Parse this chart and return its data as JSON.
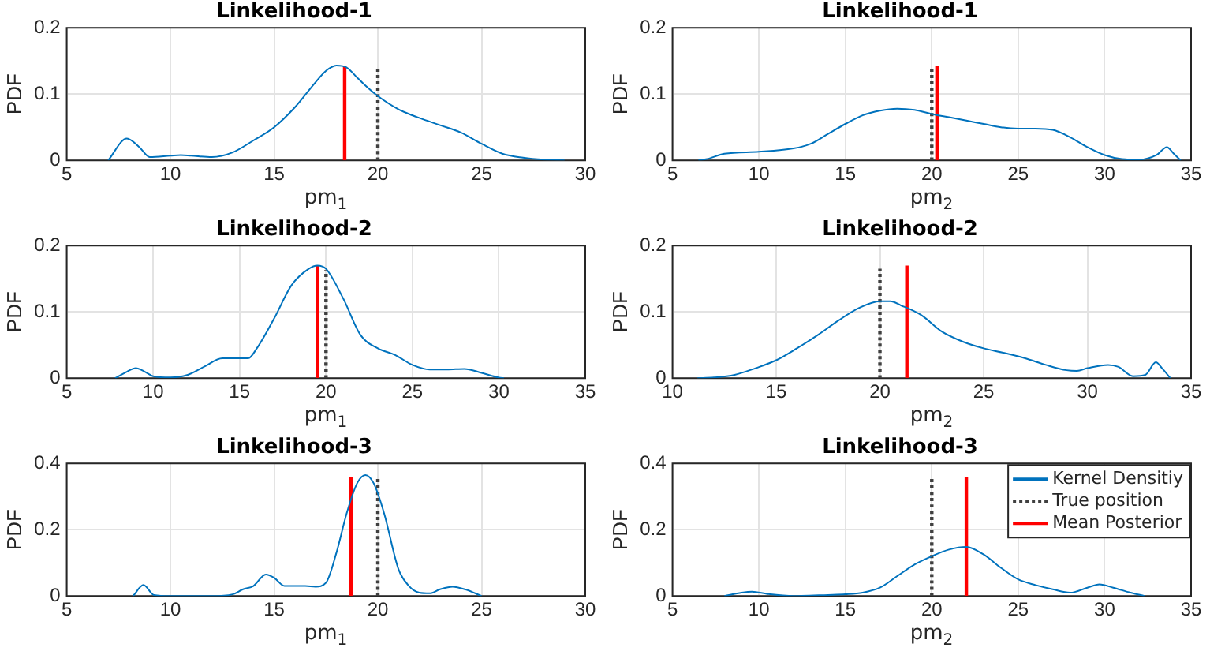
{
  "chart_data": [
    {
      "type": "line",
      "title": "Linkelihood-1",
      "xlabel": "pm$_{1}$",
      "ylabel": "PDF",
      "xlim": [
        5,
        30
      ],
      "xticks": [
        5,
        10,
        15,
        20,
        25,
        30
      ],
      "ylim": [
        0,
        0.2
      ],
      "yticks": [
        0,
        0.1,
        0.2
      ],
      "grid": true,
      "series": [
        {
          "color": "#0072bd",
          "x": [
            7,
            7.9,
            8.5,
            9,
            10,
            10.5,
            11,
            12,
            13,
            14,
            15,
            16,
            17,
            17.5,
            18,
            18.5,
            19,
            19.5,
            20,
            21,
            22,
            23,
            24,
            25,
            26,
            27,
            28,
            29
          ],
          "values": [
            0,
            0.033,
            0.02,
            0.005,
            0.007,
            0.008,
            0.007,
            0.005,
            0.012,
            0.03,
            0.05,
            0.08,
            0.118,
            0.135,
            0.143,
            0.14,
            0.125,
            0.11,
            0.097,
            0.077,
            0.064,
            0.053,
            0.042,
            0.025,
            0.01,
            0.004,
            0.001,
            0
          ]
        },
        {
          "color": "#404040",
          "line_style": "dotted",
          "x": [
            20,
            20
          ],
          "values": [
            0,
            0.143
          ]
        },
        {
          "color": "#ff0000",
          "line_style": "solid",
          "x": [
            18.4,
            18.4
          ],
          "values": [
            0,
            0.143
          ]
        }
      ]
    },
    {
      "type": "line",
      "title": "Linkelihood-1",
      "xlabel": "pm$_{2}$",
      "ylabel": "PDF",
      "xlim": [
        5,
        35
      ],
      "xticks": [
        5,
        10,
        15,
        20,
        25,
        30,
        35
      ],
      "ylim": [
        0,
        0.2
      ],
      "yticks": [
        0,
        0.1,
        0.2
      ],
      "grid": true,
      "series": [
        {
          "color": "#0072bd",
          "x": [
            6.5,
            7,
            8,
            10,
            12,
            13,
            14,
            15,
            16,
            17,
            18,
            19,
            20,
            21,
            22,
            23,
            24,
            25,
            26,
            27,
            28,
            29,
            30,
            31,
            32,
            33,
            33.6,
            34,
            34.4
          ],
          "values": [
            0,
            0.002,
            0.01,
            0.013,
            0.018,
            0.025,
            0.04,
            0.055,
            0.068,
            0.075,
            0.078,
            0.076,
            0.07,
            0.065,
            0.06,
            0.055,
            0.05,
            0.048,
            0.048,
            0.046,
            0.035,
            0.02,
            0.008,
            0.002,
            0.001,
            0.008,
            0.02,
            0.01,
            0
          ]
        },
        {
          "color": "#404040",
          "line_style": "dotted",
          "x": [
            20,
            20
          ],
          "values": [
            0,
            0.143
          ]
        },
        {
          "color": "#ff0000",
          "line_style": "solid",
          "x": [
            20.3,
            20.3
          ],
          "values": [
            0,
            0.143
          ]
        }
      ]
    },
    {
      "type": "line",
      "title": "Linkelihood-2",
      "xlabel": "pm$_{1}$",
      "ylabel": "PDF",
      "xlim": [
        5,
        35
      ],
      "xticks": [
        5,
        10,
        15,
        20,
        25,
        30,
        35
      ],
      "ylim": [
        0,
        0.2
      ],
      "yticks": [
        0,
        0.1,
        0.2
      ],
      "grid": true,
      "series": [
        {
          "color": "#0072bd",
          "x": [
            7.8,
            8.5,
            9,
            9.5,
            10,
            11,
            12,
            13,
            14,
            15,
            15.5,
            16,
            17,
            18,
            19,
            19.5,
            20,
            21,
            22,
            23,
            24,
            25,
            26,
            27,
            28,
            29,
            30,
            30.3
          ],
          "values": [
            0,
            0.01,
            0.015,
            0.01,
            0.003,
            0.001,
            0.005,
            0.018,
            0.03,
            0.03,
            0.03,
            0.045,
            0.09,
            0.14,
            0.165,
            0.17,
            0.165,
            0.12,
            0.065,
            0.045,
            0.035,
            0.02,
            0.013,
            0.013,
            0.014,
            0.008,
            0.001,
            0
          ]
        },
        {
          "color": "#404040",
          "line_style": "dotted",
          "x": [
            20,
            20
          ],
          "values": [
            0,
            0.163
          ]
        },
        {
          "color": "#ff0000",
          "line_style": "solid",
          "x": [
            19.5,
            19.5
          ],
          "values": [
            0,
            0.17
          ]
        }
      ]
    },
    {
      "type": "line",
      "title": "Linkelihood-2",
      "xlabel": "pm$_{2}$",
      "ylabel": "PDF",
      "xlim": [
        10,
        35
      ],
      "xticks": [
        10,
        15,
        20,
        25,
        30,
        35
      ],
      "ylim": [
        0,
        0.2
      ],
      "yticks": [
        0,
        0.1,
        0.2
      ],
      "grid": true,
      "series": [
        {
          "color": "#0072bd",
          "x": [
            11.2,
            12,
            13,
            14,
            15,
            16,
            17,
            18,
            19,
            20,
            20.5,
            21,
            22,
            23,
            24,
            25,
            26,
            27,
            28,
            29,
            29.5,
            30,
            31,
            31.5,
            32.2,
            32.8,
            33.3,
            33.6,
            34
          ],
          "values": [
            0,
            0.001,
            0.005,
            0.015,
            0.027,
            0.045,
            0.065,
            0.087,
            0.106,
            0.116,
            0.116,
            0.11,
            0.095,
            0.07,
            0.055,
            0.045,
            0.038,
            0.03,
            0.02,
            0.012,
            0.011,
            0.015,
            0.02,
            0.017,
            0.003,
            0.005,
            0.024,
            0.015,
            0
          ]
        },
        {
          "color": "#404040",
          "line_style": "dotted",
          "x": [
            20,
            20
          ],
          "values": [
            0,
            0.165
          ]
        },
        {
          "color": "#ff0000",
          "line_style": "solid",
          "x": [
            21.3,
            21.3
          ],
          "values": [
            0,
            0.17
          ]
        }
      ]
    },
    {
      "type": "line",
      "title": "Linkelihood-3",
      "xlabel": "pm$_{1}$",
      "ylabel": "PDF",
      "xlim": [
        5,
        30
      ],
      "xticks": [
        5,
        10,
        15,
        20,
        25,
        30
      ],
      "ylim": [
        0,
        0.4
      ],
      "yticks": [
        0,
        0.2,
        0.4
      ],
      "grid": true,
      "series": [
        {
          "color": "#0072bd",
          "x": [
            8.2,
            8.7,
            9.2,
            10,
            12,
            13,
            13.5,
            14,
            14.6,
            15,
            15.5,
            16.5,
            17,
            17.5,
            18,
            18.5,
            19,
            19.4,
            19.8,
            20.3,
            21,
            21.5,
            22,
            22.5,
            23,
            23.6,
            24.2,
            25
          ],
          "values": [
            0,
            0.033,
            0.003,
            0,
            0,
            0.005,
            0.02,
            0.03,
            0.065,
            0.055,
            0.03,
            0.03,
            0.028,
            0.04,
            0.13,
            0.25,
            0.34,
            0.365,
            0.34,
            0.25,
            0.08,
            0.03,
            0.01,
            0.008,
            0.02,
            0.028,
            0.02,
            0
          ]
        },
        {
          "color": "#404040",
          "line_style": "dotted",
          "x": [
            20,
            20
          ],
          "values": [
            0,
            0.36
          ]
        },
        {
          "color": "#ff0000",
          "line_style": "solid",
          "x": [
            18.7,
            18.7
          ],
          "values": [
            0,
            0.36
          ]
        }
      ]
    },
    {
      "type": "line",
      "title": "Linkelihood-3",
      "xlabel": "pm$_{2}$",
      "ylabel": "PDF",
      "xlim": [
        5,
        35
      ],
      "xticks": [
        5,
        10,
        15,
        20,
        25,
        30,
        35
      ],
      "ylim": [
        0,
        0.4
      ],
      "yticks": [
        0,
        0.2,
        0.4
      ],
      "grid": true,
      "legend": "top right",
      "series": [
        {
          "name": "Kernel Densitiy",
          "color": "#0072bd",
          "x": [
            8,
            9,
            9.6,
            10.5,
            12,
            14,
            15,
            16,
            17,
            18,
            19,
            20,
            21,
            22,
            23,
            24,
            25,
            26,
            27,
            28,
            29,
            29.7,
            30.5,
            31.5,
            32.3
          ],
          "values": [
            0,
            0.01,
            0.013,
            0.006,
            0,
            0.003,
            0.005,
            0.01,
            0.025,
            0.06,
            0.095,
            0.12,
            0.14,
            0.148,
            0.125,
            0.085,
            0.05,
            0.033,
            0.02,
            0.01,
            0.025,
            0.035,
            0.025,
            0.01,
            0
          ]
        },
        {
          "name": "True position",
          "color": "#404040",
          "line_style": "dotted",
          "x": [
            20,
            20
          ],
          "values": [
            0,
            0.36
          ]
        },
        {
          "name": "Mean Posterior",
          "color": "#ff0000",
          "line_style": "solid",
          "x": [
            22,
            22
          ],
          "values": [
            0,
            0.36
          ]
        }
      ]
    }
  ]
}
